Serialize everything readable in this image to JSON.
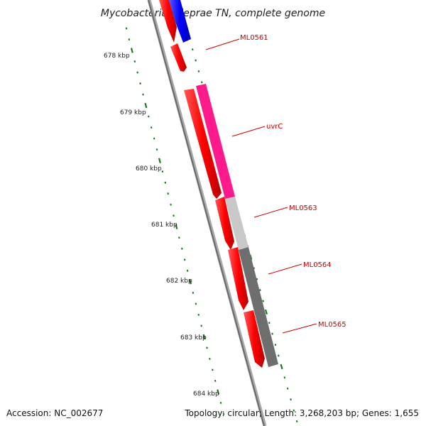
{
  "title": "Mycobacterium leprae TN, complete genome",
  "footer": {
    "accession": "Accession: NC_002677",
    "summary": "Topology: circular; Length: 3,268,203 bp; Genes: 1,655"
  },
  "kbp_labels": [
    "678 kbp",
    "679 kbp",
    "680 kbp",
    "681 kbp",
    "682 kbp",
    "683 kbp",
    "684 kbp"
  ],
  "gene_labels": [
    "ML0561",
    "uvrC",
    "ML0563",
    "ML0564",
    "ML0565"
  ],
  "colors": {
    "cds": "#ff0000",
    "blue": "#0000ff",
    "magenta": "#ff1a8c",
    "light_grey": "#c8c8c8",
    "dark_grey": "#6e6e6e",
    "backbone": "#808080",
    "ticks": "#1a7a1a",
    "label": "#cc0000"
  }
}
